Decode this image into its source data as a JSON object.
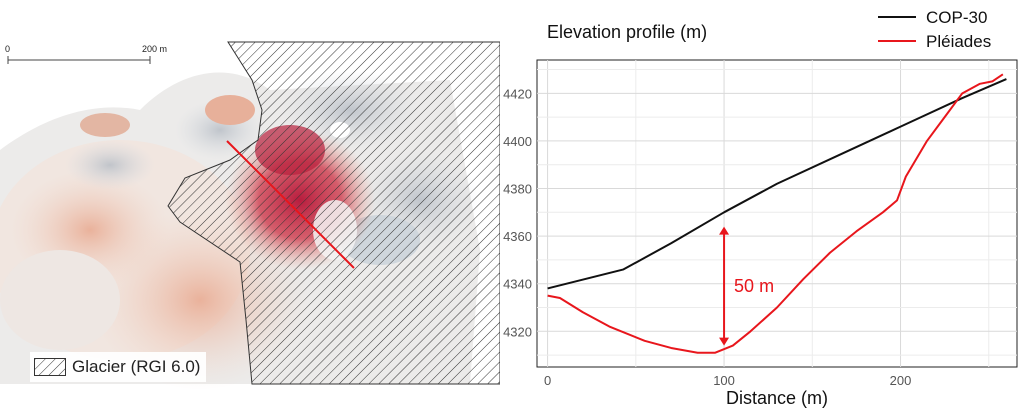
{
  "map": {
    "scalebar": {
      "start_label": "0",
      "end_label": "200 m"
    },
    "legend": {
      "label": "Glacier (RGI 6.0)"
    },
    "colors": {
      "profile_line": "#e8161c",
      "hatch": "#333333",
      "anomaly": "#c01f3a"
    }
  },
  "chart_data": {
    "type": "line",
    "title": "Elevation profile (m)",
    "xlabel": "Distance (m)",
    "ylabel": "",
    "xlim": [
      -6,
      266
    ],
    "ylim": [
      4305,
      4434
    ],
    "x_ticks": [
      0,
      100,
      200
    ],
    "y_ticks": [
      4320,
      4340,
      4360,
      4380,
      4400,
      4420
    ],
    "grid": true,
    "legend_position": "top-right",
    "series": [
      {
        "name": "COP-30",
        "color": "#111111",
        "x": [
          0,
          43,
          70,
          100,
          130,
          165,
          200,
          235,
          260
        ],
        "y": [
          4338,
          4346,
          4357,
          4370,
          4382,
          4394,
          4406,
          4418,
          4426
        ]
      },
      {
        "name": "Pléiades",
        "color": "#e8161c",
        "x": [
          0,
          7,
          20,
          35,
          55,
          70,
          85,
          95,
          105,
          115,
          130,
          145,
          160,
          175,
          190,
          198,
          203,
          215,
          225,
          235,
          245,
          252,
          258
        ],
        "y": [
          4335,
          4334,
          4328,
          4322,
          4316,
          4313,
          4311,
          4311,
          4314,
          4320,
          4330,
          4342,
          4353,
          4362,
          4370,
          4375,
          4385,
          4400,
          4410,
          4420,
          4424,
          4425,
          4428
        ]
      }
    ],
    "annotation": {
      "text": "50 m",
      "x": 100,
      "y_from": 4314,
      "y_to": 4364,
      "color": "#e8161c"
    }
  }
}
